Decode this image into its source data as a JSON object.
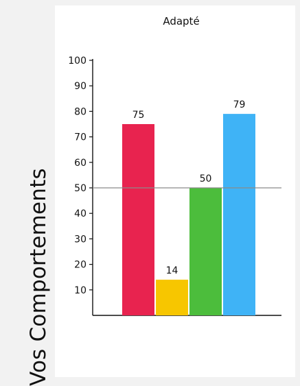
{
  "side_label": "Vos Comportements",
  "chart_data": {
    "type": "bar",
    "title": "Adapté",
    "xlabel": "",
    "ylabel": "Vos Comportements",
    "categories": [
      "",
      "",
      "",
      ""
    ],
    "values": [
      75,
      14,
      50,
      79
    ],
    "colors": [
      "#e8234f",
      "#f7c600",
      "#4cbd3c",
      "#3fb3f6"
    ],
    "ylim": [
      0,
      100
    ],
    "yticks": [
      10,
      20,
      30,
      40,
      50,
      60,
      70,
      80,
      90,
      100
    ],
    "reference_line": 50,
    "grid": false,
    "legend": "none"
  }
}
